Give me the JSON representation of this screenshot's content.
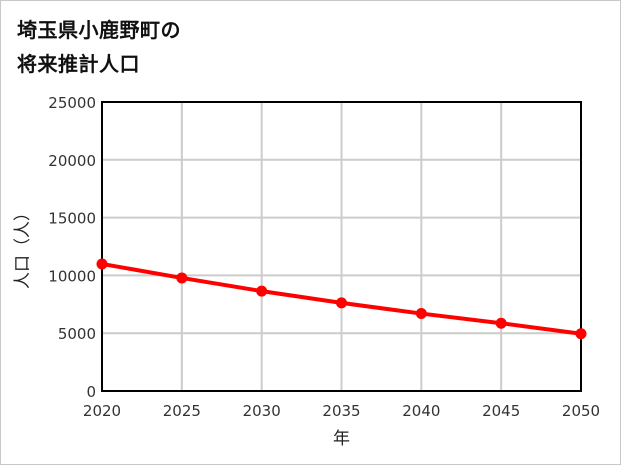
{
  "title_lines": [
    "埼玉県小鹿野町の",
    "将来推計人口"
  ],
  "colors": {
    "series": "#ff0000",
    "grid": "#cccccc",
    "axis": "#000000"
  },
  "chart_data": {
    "type": "line",
    "title": "埼玉県小鹿野町の将来推計人口",
    "xlabel": "年",
    "ylabel": "人口（人）",
    "x": [
      2020,
      2025,
      2030,
      2035,
      2040,
      2045,
      2050
    ],
    "series": [
      {
        "name": "人口",
        "values": [
          10990,
          9780,
          8640,
          7620,
          6700,
          5860,
          4950
        ]
      }
    ],
    "ylim": [
      0,
      25000
    ],
    "yticks": [
      0,
      5000,
      10000,
      15000,
      20000,
      25000
    ],
    "xticks": [
      2020,
      2025,
      2030,
      2035,
      2040,
      2045,
      2050
    ],
    "grid": true,
    "legend": null
  }
}
